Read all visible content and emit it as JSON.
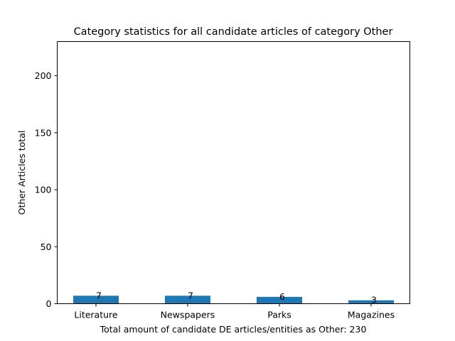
{
  "chart_data": {
    "type": "bar",
    "title": "Category statistics for all candidate articles of category Other",
    "xlabel": "Total amount of candidate DE articles/entities as Other: 230",
    "ylabel": "Other Articles total",
    "categories": [
      "Literature",
      "Newspapers",
      "Parks",
      "Magazines"
    ],
    "values": [
      7,
      7,
      6,
      3
    ],
    "data_labels": [
      "7",
      "7",
      "6",
      "3"
    ],
    "ylim": [
      0,
      230
    ],
    "yticks": [
      0,
      50,
      100,
      150,
      200
    ],
    "ytick_labels": [
      "0",
      "50",
      "100",
      "150",
      "200"
    ],
    "bar_color": "#1f77b4",
    "grid": false,
    "legend": false
  }
}
